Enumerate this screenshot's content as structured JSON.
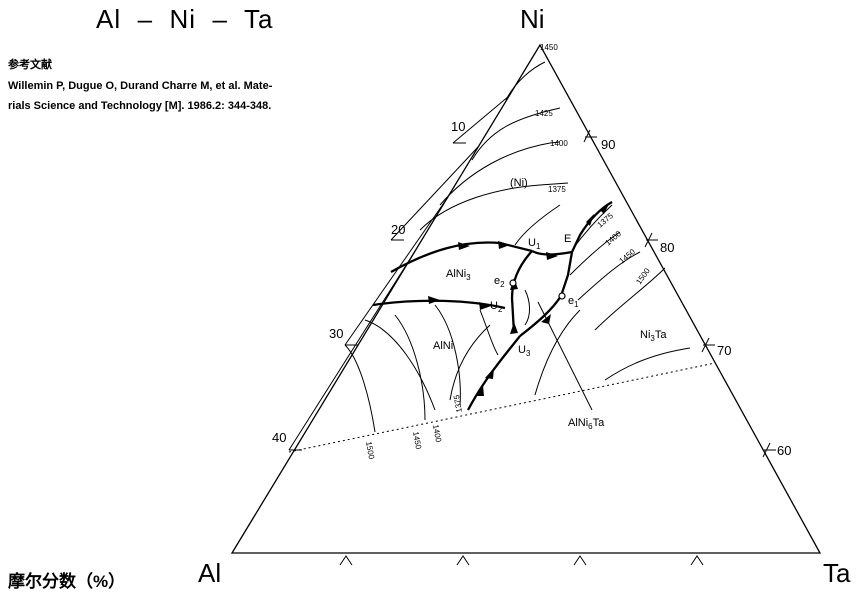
{
  "title": {
    "part1": "Al",
    "part2": "Ni",
    "part3": "Ta"
  },
  "reference": {
    "heading": "参考文献",
    "line1": "Willemin P, Dugue O, Durand Charre M, et al.  Mate-",
    "line2": "rials Science and Technology [M]. 1986.2: 344-348."
  },
  "footer_label": "摩尔分数（%）",
  "corners": {
    "top": "Ni",
    "left": "Al",
    "right": "Ta"
  },
  "left_ticks": [
    "10",
    "20",
    "30",
    "40"
  ],
  "right_ticks": [
    "90",
    "80",
    "70",
    "60"
  ],
  "isotherm_labels": [
    "1450",
    "1425",
    "1400",
    "1375",
    "1375",
    "1400",
    "1450",
    "1500",
    "1375",
    "1500",
    "1450",
    "1400"
  ],
  "phase_labels": {
    "ni": "(Ni)",
    "alni3": "AlNi",
    "alni3_sub": "3",
    "alni": "AlNi",
    "ni3ta": "Ni",
    "ni3ta_sub": "3",
    "ni3ta_tail": "Ta",
    "alni6ta": "AlNi",
    "alni6ta_sub": "6",
    "alni6ta_tail": "Ta"
  },
  "point_labels": {
    "u1": "U",
    "u1_sub": "1",
    "u2": "U",
    "u2_sub": "2",
    "u3": "U",
    "u3_sub": "3",
    "e": "E",
    "e1": "e",
    "e1_sub": "1",
    "e2": "e",
    "e2_sub": "2"
  }
}
